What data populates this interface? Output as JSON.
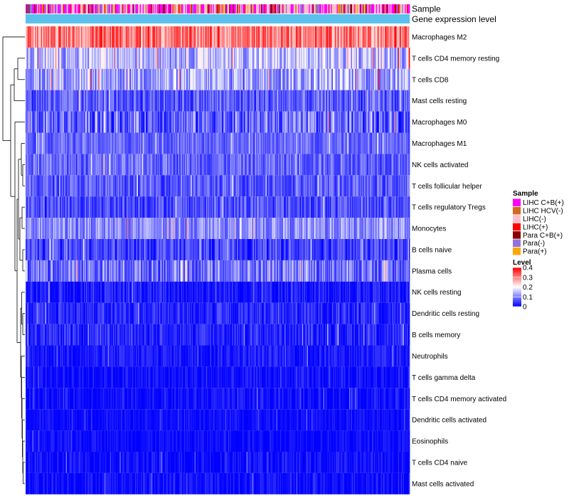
{
  "chart_data": {
    "type": "heatmap",
    "title": "",
    "columns_count": 400,
    "annotation_rows": [
      {
        "name": "Sample"
      },
      {
        "name": "Gene expression level"
      }
    ],
    "rows": [
      {
        "label": "Macrophages M2",
        "level": 0.3,
        "spread": 0.08
      },
      {
        "label": "T cells CD4 memory resting",
        "level": 0.15,
        "spread": 0.08
      },
      {
        "label": "T cells CD8",
        "level": 0.13,
        "spread": 0.08
      },
      {
        "label": "Mast cells resting",
        "level": 0.07,
        "spread": 0.06
      },
      {
        "label": "Macrophages M0",
        "level": 0.08,
        "spread": 0.08
      },
      {
        "label": "Macrophages M1",
        "level": 0.08,
        "spread": 0.04
      },
      {
        "label": "NK cells activated",
        "level": 0.08,
        "spread": 0.05
      },
      {
        "label": "T cells follicular helper",
        "level": 0.07,
        "spread": 0.05
      },
      {
        "label": "T cells regulatory  Tregs",
        "level": 0.06,
        "spread": 0.05
      },
      {
        "label": "Monocytes",
        "level": 0.11,
        "spread": 0.06
      },
      {
        "label": "B cells naive",
        "level": 0.05,
        "spread": 0.05
      },
      {
        "label": "Plasma cells",
        "level": 0.09,
        "spread": 0.07
      },
      {
        "label": "NK cells resting",
        "level": 0.02,
        "spread": 0.04
      },
      {
        "label": "Dendritic cells resting",
        "level": 0.03,
        "spread": 0.04
      },
      {
        "label": "B cells memory",
        "level": 0.03,
        "spread": 0.04
      },
      {
        "label": "Neutrophils",
        "level": 0.02,
        "spread": 0.03
      },
      {
        "label": "T cells gamma delta",
        "level": 0.01,
        "spread": 0.03
      },
      {
        "label": "T cells CD4 memory activated",
        "level": 0.01,
        "spread": 0.03
      },
      {
        "label": "Dendritic cells activated",
        "level": 0.01,
        "spread": 0.02
      },
      {
        "label": "Eosinophils",
        "level": 0.01,
        "spread": 0.02
      },
      {
        "label": "T cells CD4 naive",
        "level": 0.01,
        "spread": 0.03
      },
      {
        "label": "Mast cells activated",
        "level": 0.01,
        "spread": 0.03
      }
    ],
    "sample_groups": [
      {
        "label": "LIHC C+B(+)",
        "color": "#ff00ff",
        "weight": 0.3
      },
      {
        "label": "LIHC HCV(-)",
        "color": "#d2691e",
        "weight": 0.05
      },
      {
        "label": "LIHC(-)",
        "color": "#ffc0cb",
        "weight": 0.35
      },
      {
        "label": "LIHC(+)",
        "color": "#ff0000",
        "weight": 0.08
      },
      {
        "label": "Para C+B(+)",
        "color": "#8b0000",
        "weight": 0.07
      },
      {
        "label": "Para(-)",
        "color": "#9370db",
        "weight": 0.1
      },
      {
        "label": "Para(+)",
        "color": "#ffa500",
        "weight": 0.05
      }
    ],
    "gene_expression_color": "#5bc0eb",
    "legends": {
      "sample_title": "Sample",
      "level_title": "Level",
      "level_ticks": [
        "0.4",
        "0.3",
        "0.2",
        "0.1",
        "0"
      ],
      "level_range": [
        0,
        0.4
      ]
    },
    "color_scale": {
      "low": "#0000ff",
      "mid": "#ffffff",
      "high": "#ff0000",
      "mid_value": 0.2
    }
  }
}
